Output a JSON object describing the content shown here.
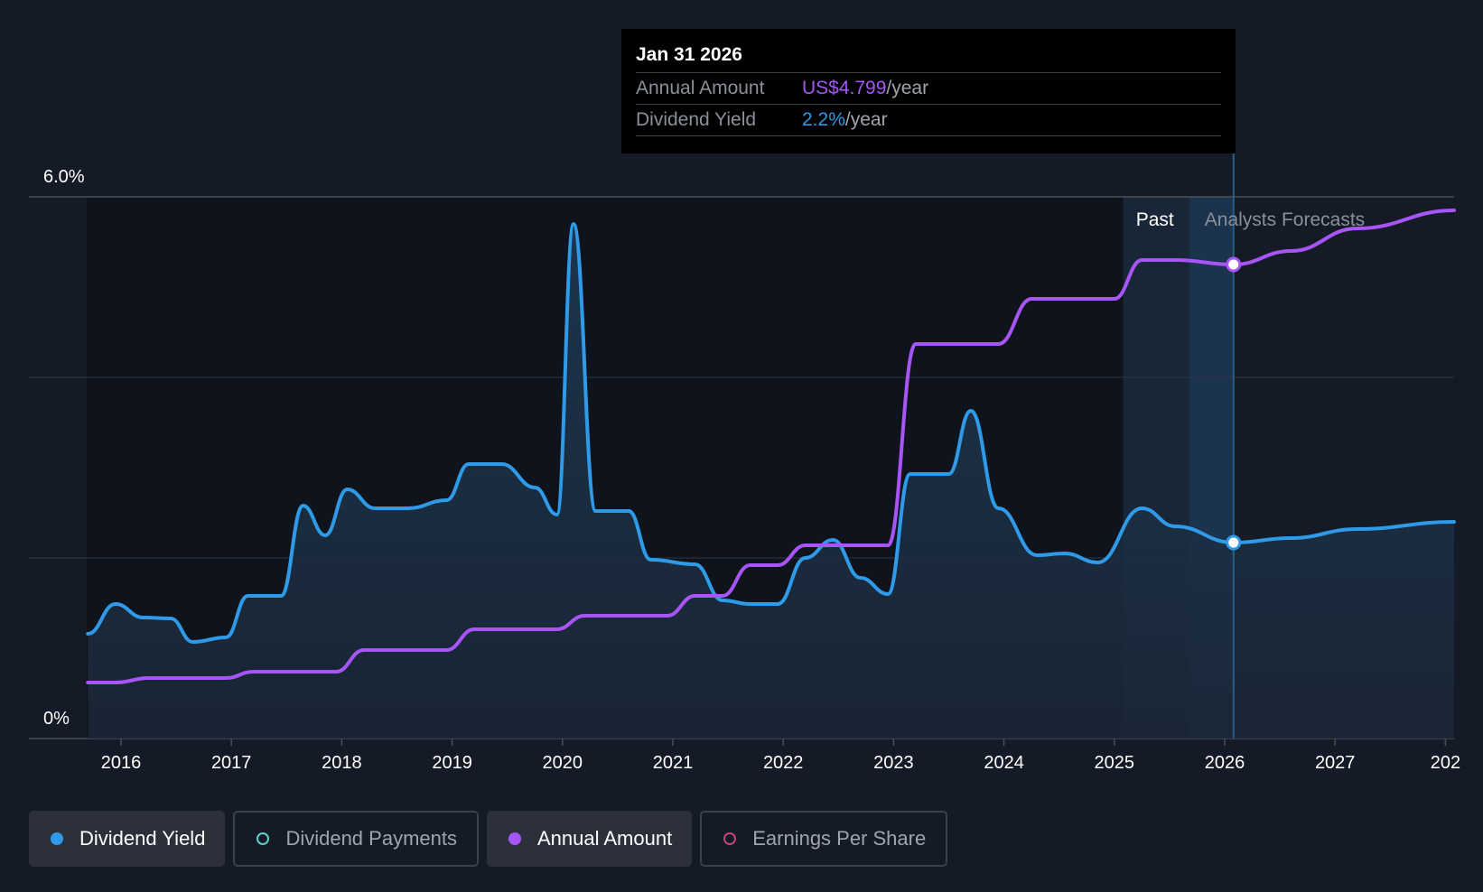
{
  "tooltip": {
    "date": "Jan 31 2026",
    "rows": [
      {
        "label": "Annual Amount",
        "value": "US$4.799",
        "unit": "/year"
      },
      {
        "label": "Dividend Yield",
        "value": "2.2%",
        "unit": "/year"
      }
    ]
  },
  "legend": [
    {
      "label": "Dividend Yield",
      "color": "#2f9ae8",
      "active": true,
      "filled": true
    },
    {
      "label": "Dividend Payments",
      "color": "#5fd3c0",
      "active": false,
      "filled": false
    },
    {
      "label": "Annual Amount",
      "color": "#a855f7",
      "active": true,
      "filled": true
    },
    {
      "label": "Earnings Per Share",
      "color": "#c2457a",
      "active": false,
      "filled": false
    }
  ],
  "chart_data": {
    "type": "line",
    "y_tick_labels": [
      "6.0%",
      "0%"
    ],
    "ylim": [
      0,
      6.0
    ],
    "x_tick_labels": [
      "2016",
      "2017",
      "2018",
      "2019",
      "2020",
      "2021",
      "2022",
      "2023",
      "2024",
      "2025",
      "2026",
      "2027",
      "202"
    ],
    "xlim": [
      2015.7,
      2028.1
    ],
    "region_labels": {
      "past": "Past",
      "forecast": "Analysts Forecasts"
    },
    "past_end": 2026.08,
    "highlight_start": 2025.08,
    "grid": true,
    "series": [
      {
        "name": "Dividend Yield",
        "color": "#2f9ae8",
        "area": true,
        "points": [
          [
            2015.7,
            1.16
          ],
          [
            2015.95,
            1.49
          ],
          [
            2016.2,
            1.34
          ],
          [
            2016.45,
            1.33
          ],
          [
            2016.65,
            1.07
          ],
          [
            2016.95,
            1.12
          ],
          [
            2017.15,
            1.58
          ],
          [
            2017.45,
            1.58
          ],
          [
            2017.65,
            2.58
          ],
          [
            2017.85,
            2.25
          ],
          [
            2018.05,
            2.76
          ],
          [
            2018.3,
            2.55
          ],
          [
            2018.6,
            2.55
          ],
          [
            2018.95,
            2.64
          ],
          [
            2019.15,
            3.04
          ],
          [
            2019.45,
            3.04
          ],
          [
            2019.75,
            2.78
          ],
          [
            2019.95,
            2.48
          ],
          [
            2020.1,
            5.7
          ],
          [
            2020.3,
            2.52
          ],
          [
            2020.6,
            2.52
          ],
          [
            2020.8,
            1.98
          ],
          [
            2021.2,
            1.93
          ],
          [
            2021.45,
            1.53
          ],
          [
            2021.7,
            1.49
          ],
          [
            2021.95,
            1.49
          ],
          [
            2022.2,
            2.0
          ],
          [
            2022.45,
            2.2
          ],
          [
            2022.7,
            1.78
          ],
          [
            2022.95,
            1.6
          ],
          [
            2023.15,
            2.93
          ],
          [
            2023.5,
            2.93
          ],
          [
            2023.7,
            3.63
          ],
          [
            2023.95,
            2.55
          ],
          [
            2024.3,
            2.03
          ],
          [
            2024.55,
            2.05
          ],
          [
            2024.85,
            1.95
          ],
          [
            2025.25,
            2.55
          ],
          [
            2025.55,
            2.35
          ],
          [
            2026.08,
            2.17
          ],
          [
            2026.6,
            2.22
          ],
          [
            2027.2,
            2.32
          ],
          [
            2028.1,
            2.4
          ]
        ]
      },
      {
        "name": "Annual Amount",
        "color": "#a855f7",
        "area": false,
        "points": [
          [
            2015.7,
            0.62
          ],
          [
            2015.95,
            0.62
          ],
          [
            2016.25,
            0.67
          ],
          [
            2016.95,
            0.67
          ],
          [
            2017.2,
            0.74
          ],
          [
            2017.95,
            0.74
          ],
          [
            2018.2,
            0.98
          ],
          [
            2018.95,
            0.98
          ],
          [
            2019.2,
            1.21
          ],
          [
            2019.95,
            1.21
          ],
          [
            2020.2,
            1.36
          ],
          [
            2020.95,
            1.36
          ],
          [
            2021.2,
            1.58
          ],
          [
            2021.45,
            1.58
          ],
          [
            2021.7,
            1.92
          ],
          [
            2021.95,
            1.92
          ],
          [
            2022.2,
            2.14
          ],
          [
            2022.95,
            2.14
          ],
          [
            2023.2,
            4.37
          ],
          [
            2023.95,
            4.37
          ],
          [
            2024.25,
            4.87
          ],
          [
            2025.0,
            4.87
          ],
          [
            2025.25,
            5.3
          ],
          [
            2025.55,
            5.3
          ],
          [
            2026.08,
            5.25
          ],
          [
            2026.6,
            5.4
          ],
          [
            2027.2,
            5.65
          ],
          [
            2028.1,
            5.85
          ]
        ],
        "marker_x": 2026.08
      }
    ],
    "tooltip_x": 2026.08
  }
}
